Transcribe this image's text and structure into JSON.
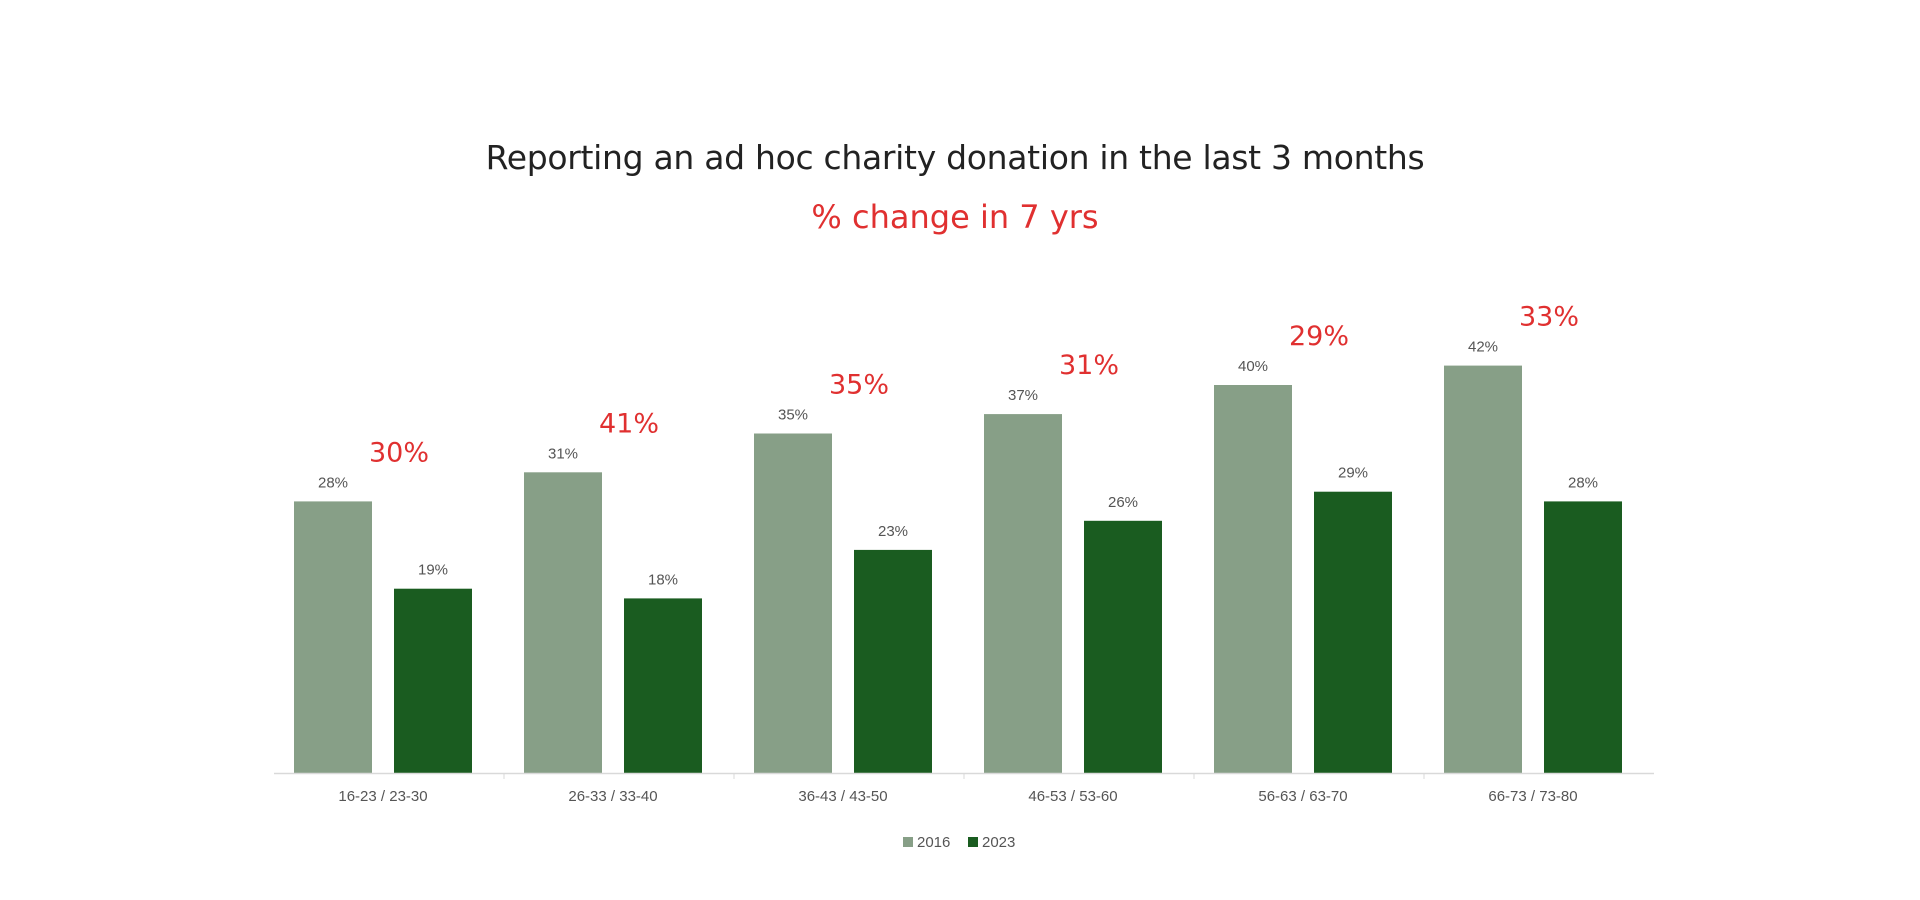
{
  "colors": {
    "series_2016": "#879f87",
    "series_2023": "#1a5c20",
    "change_red": "#e03030",
    "axis": "#d9d9d9"
  },
  "chart_data": {
    "type": "bar",
    "title": "Reporting an ad hoc charity donation in the last 3 months",
    "subtitle": "% change in 7 yrs",
    "categories": [
      "16-23 / 23-30",
      "26-33 / 33-40",
      "36-43 / 43-50",
      "46-53 / 53-60",
      "56-63 / 63-70",
      "66-73 / 73-80"
    ],
    "series": [
      {
        "name": "2016",
        "values": [
          28,
          31,
          35,
          37,
          40,
          42
        ],
        "labels": [
          "28%",
          "31%",
          "35%",
          "37%",
          "40%",
          "42%"
        ]
      },
      {
        "name": "2023",
        "values": [
          19,
          18,
          23,
          26,
          29,
          28
        ],
        "labels": [
          "19%",
          "18%",
          "23%",
          "26%",
          "29%",
          "28%"
        ]
      }
    ],
    "change_labels": [
      "30%",
      "41%",
      "35%",
      "31%",
      "29%",
      "33%"
    ],
    "ylim": [
      0,
      50
    ],
    "grid": false,
    "legend_position": "bottom-center"
  }
}
